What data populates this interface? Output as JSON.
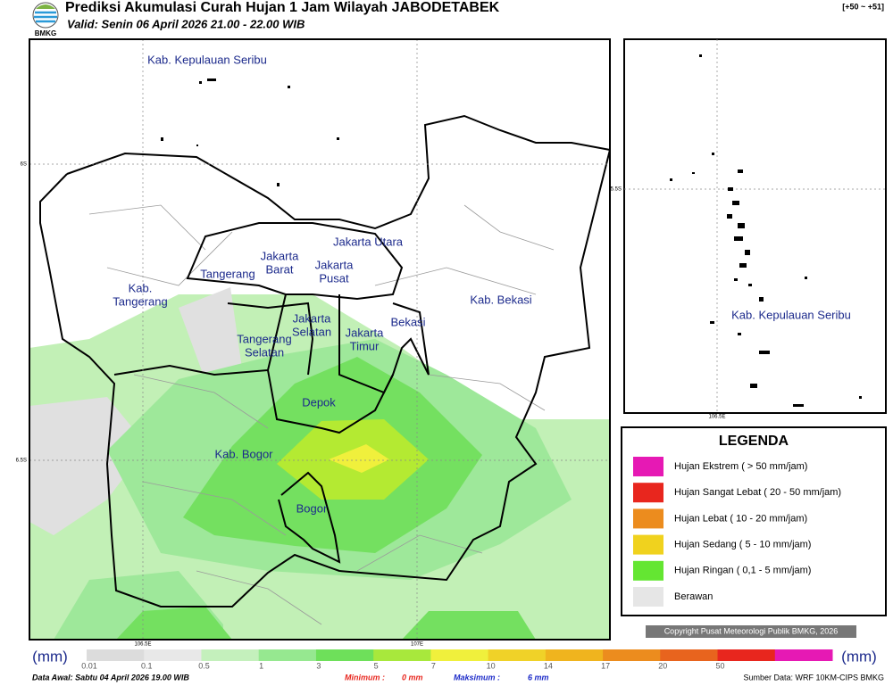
{
  "header": {
    "title": "Prediksi Akumulasi Curah Hujan 1 Jam Wilayah JABODETABEK",
    "valid": "Valid: Senin 06 April 2026 21.00 - 22.00 WIB",
    "logo": "BMKG",
    "run_code": "[+50 ~ +51]"
  },
  "map": {
    "labels": [
      [
        "Kab. Kepulauan Seribu"
      ],
      [
        "Jakarta Utara"
      ],
      [
        "Jakarta",
        "Barat"
      ],
      [
        "Jakarta",
        "Pusat"
      ],
      [
        "Tangerang"
      ],
      [
        "Kab.",
        "Tangerang"
      ],
      [
        "Jakarta",
        "Selatan"
      ],
      [
        "Jakarta",
        "Timur"
      ],
      [
        "Bekasi"
      ],
      [
        "Kab. Bekasi"
      ],
      [
        "Tangerang",
        "Selatan"
      ],
      [
        "Depok"
      ],
      [
        "Kab. Bogor"
      ],
      [
        "Bogor"
      ]
    ],
    "lat_labels": [
      "6S",
      "6.5S"
    ],
    "lon_labels": [
      "106.5E",
      "107E"
    ]
  },
  "inset": {
    "label": "Kab. Kepulauan Seribu",
    "lat_label": "5.5S",
    "lon_label": "106.5E"
  },
  "legend": {
    "title": "LEGENDA",
    "items": [
      {
        "label": "Hujan Ekstrem ( > 50 mm/jam)",
        "color": "#e619b4"
      },
      {
        "label": "Hujan Sangat Lebat ( 20 - 50 mm/jam)",
        "color": "#e8261e"
      },
      {
        "label": "Hujan Lebat ( 10 - 20 mm/jam)",
        "color": "#ec8c1e"
      },
      {
        "label": "Hujan Sedang ( 5 - 10 mm/jam)",
        "color": "#f0d21e"
      },
      {
        "label": "Hujan Ringan ( 0,1 - 5 mm/jam)",
        "color": "#64e632"
      },
      {
        "label": "Berawan",
        "color": "#e6e6e6"
      }
    ]
  },
  "copyright": "Copyright Pusat Meteorologi Publik BMKG, 2026",
  "colorbar": {
    "unit": "(mm)",
    "ticks": [
      "0.01",
      "0.1",
      "0.5",
      "1",
      "3",
      "5",
      "7",
      "10",
      "14",
      "17",
      "20",
      "50"
    ],
    "colors": [
      "#dcdcdc",
      "#e8e8e8",
      "#c4f0bc",
      "#96e890",
      "#6ee05a",
      "#a8e83c",
      "#f0f03c",
      "#f0d228",
      "#f0b41e",
      "#ec8c1e",
      "#e8641e",
      "#e8261e",
      "#e619b4"
    ]
  },
  "footer": {
    "data_awal": "Data Awal: Sabtu 04 April 2026 19.00 WIB",
    "min_label": "Minimum :",
    "min_value": "0 mm",
    "max_label": "Maksimum :",
    "max_value": "6 mm",
    "source": "Sumber Data: WRF 10KM-CIPS BMKG"
  }
}
